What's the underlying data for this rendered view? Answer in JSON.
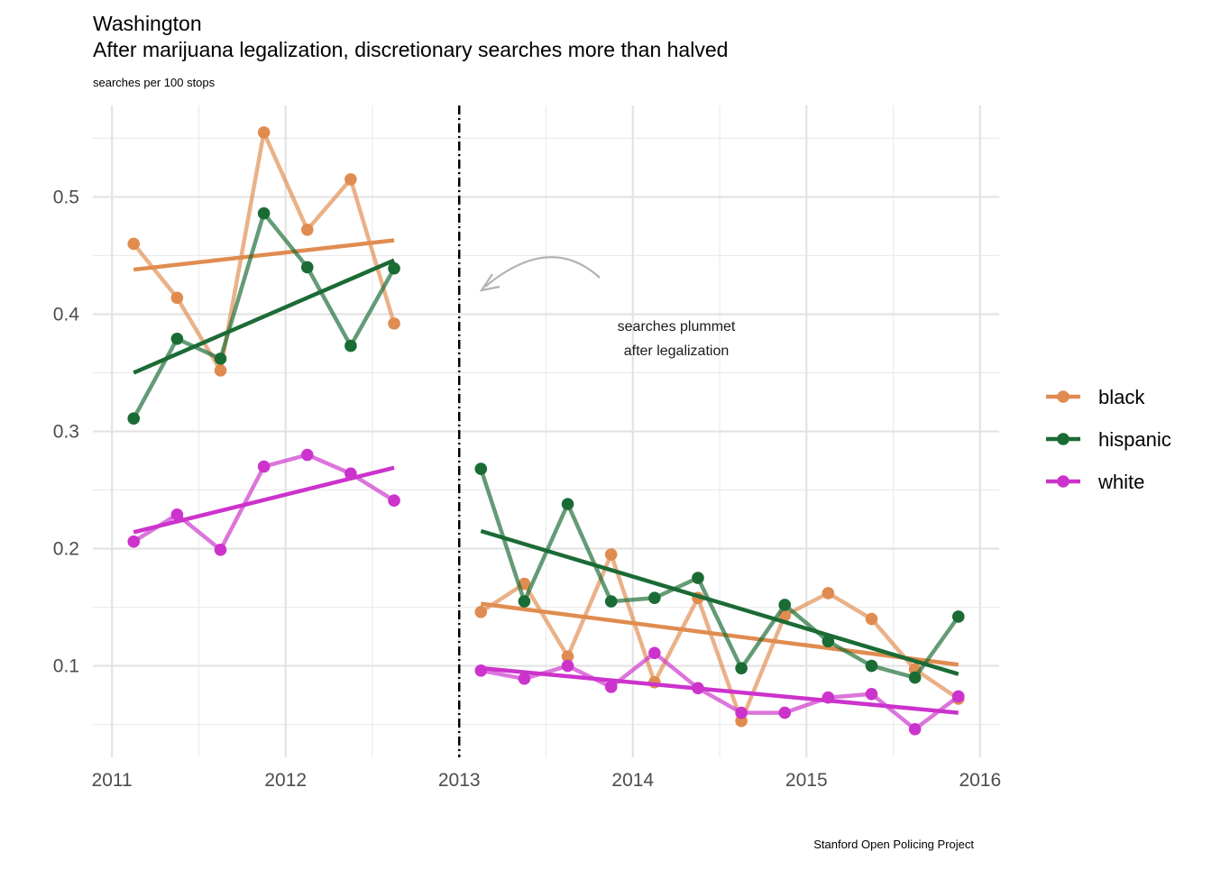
{
  "chart_data": {
    "type": "line",
    "title": "Washington",
    "subtitle": "After marijuana legalization, discretionary searches more than halved",
    "ylabel": "searches per 100 stops",
    "caption": "Stanford Open Policing Project",
    "annotation": [
      "searches plummet",
      "after legalization"
    ],
    "legalization_date": 2013.0,
    "xlim": [
      2010.89,
      2016.11
    ],
    "ylim": [
      0.022,
      0.578
    ],
    "x_ticks": [
      2011,
      2012,
      2013,
      2014,
      2015,
      2016
    ],
    "x_tick_labels": [
      "2011",
      "2012",
      "2013",
      "2014",
      "2015",
      "2016"
    ],
    "y_ticks": [
      0.1,
      0.2,
      0.3,
      0.4,
      0.5
    ],
    "y_tick_labels": [
      "0.1",
      "0.2",
      "0.3",
      "0.4",
      "0.5"
    ],
    "grid": true,
    "legend_position": "right",
    "series": [
      {
        "name": "black",
        "color": "#e08c50",
        "x": [
          2011.125,
          2011.375,
          2011.625,
          2011.875,
          2012.125,
          2012.375,
          2012.625,
          2013.125,
          2013.375,
          2013.625,
          2013.875,
          2014.125,
          2014.375,
          2014.625,
          2014.875,
          2015.125,
          2015.375,
          2015.625,
          2015.875
        ],
        "values": [
          0.46,
          0.414,
          0.352,
          0.555,
          0.472,
          0.515,
          0.392,
          0.146,
          0.17,
          0.108,
          0.195,
          0.086,
          0.158,
          0.053,
          0.143,
          0.162,
          0.14,
          0.097,
          0.072
        ],
        "trend_pre": [
          0.438,
          0.463
        ],
        "trend_post": [
          0.153,
          0.101
        ]
      },
      {
        "name": "hispanic",
        "color": "#1b6b35",
        "x": [
          2011.125,
          2011.375,
          2011.625,
          2011.875,
          2012.125,
          2012.375,
          2012.625,
          2013.125,
          2013.375,
          2013.625,
          2013.875,
          2014.125,
          2014.375,
          2014.625,
          2014.875,
          2015.125,
          2015.375,
          2015.625,
          2015.875
        ],
        "values": [
          0.311,
          0.379,
          0.362,
          0.486,
          0.44,
          0.373,
          0.439,
          0.268,
          0.155,
          0.238,
          0.155,
          0.158,
          0.175,
          0.098,
          0.152,
          0.121,
          0.1,
          0.09,
          0.142
        ],
        "trend_pre": [
          0.35,
          0.446
        ],
        "trend_post": [
          0.215,
          0.093
        ]
      },
      {
        "name": "white",
        "color": "#cc33cc",
        "x": [
          2011.125,
          2011.375,
          2011.625,
          2011.875,
          2012.125,
          2012.375,
          2012.625,
          2013.125,
          2013.375,
          2013.625,
          2013.875,
          2014.125,
          2014.375,
          2014.625,
          2014.875,
          2015.125,
          2015.375,
          2015.625,
          2015.875
        ],
        "values": [
          0.206,
          0.229,
          0.199,
          0.27,
          0.28,
          0.264,
          0.241,
          0.096,
          0.089,
          0.1,
          0.082,
          0.111,
          0.081,
          0.06,
          0.06,
          0.073,
          0.076,
          0.046,
          0.074
        ],
        "trend_pre": [
          0.214,
          0.269
        ],
        "trend_post": [
          0.098,
          0.06
        ]
      }
    ]
  }
}
